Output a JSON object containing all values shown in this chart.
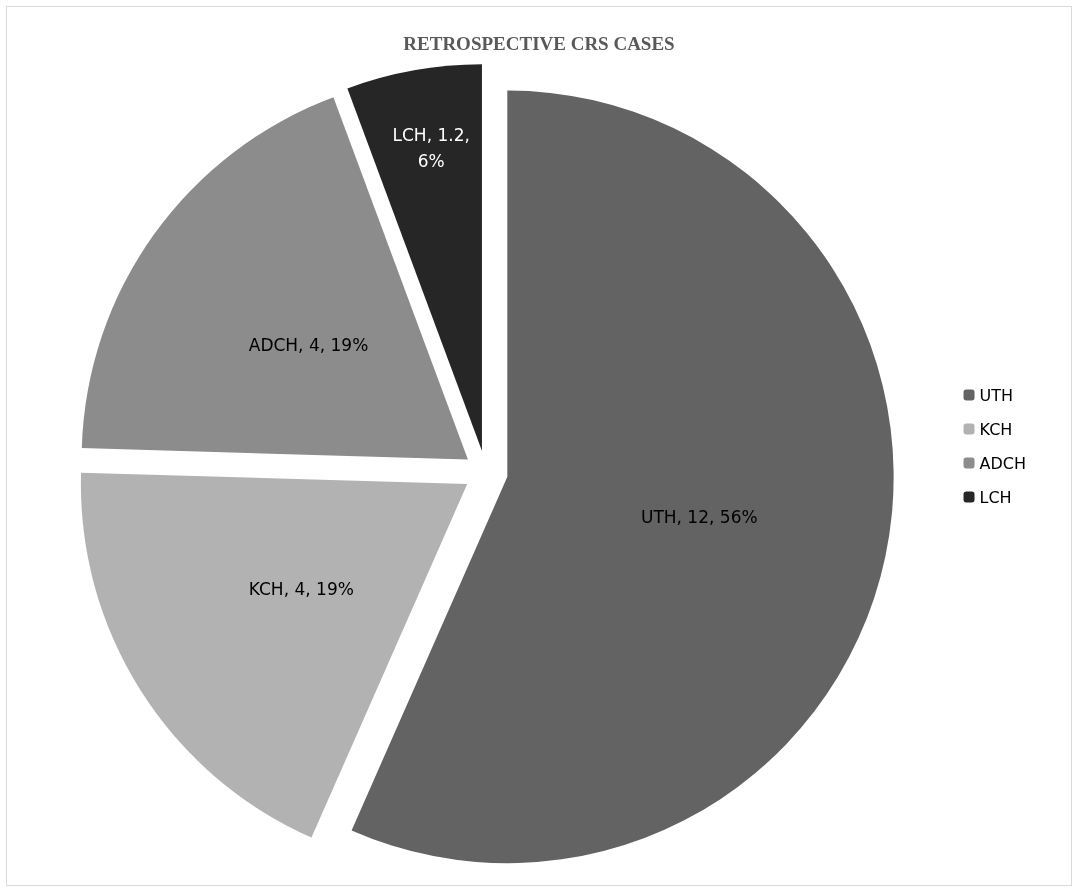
{
  "chart_data": {
    "type": "pie",
    "title": "RETROSPECTIVE CRS CASES",
    "categories": [
      "UTH",
      "KCH",
      "ADCH",
      "LCH"
    ],
    "values": [
      12,
      4,
      4,
      1.2
    ],
    "colors": [
      "#636363",
      "#b2b2b2",
      "#8c8c8c",
      "#262626"
    ],
    "value_labels": [
      "UTH, 12, 56%",
      "KCH, 4, 19%",
      "ADCH, 4, 19%",
      "LCH, 1.2, 6%"
    ],
    "legend": "right"
  }
}
